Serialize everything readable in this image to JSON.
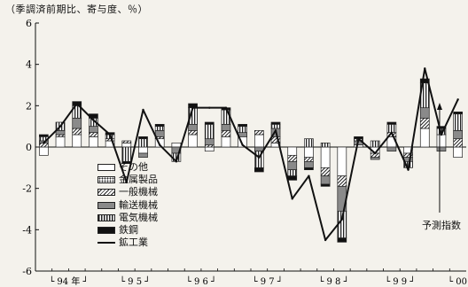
{
  "chart_data": {
    "type": "bar",
    "subtype": "stacked bar + line",
    "unit_label": "（季調済前期比、寄与度、％）",
    "annotation": "予測指数",
    "ylim": [
      -6,
      6
    ],
    "yticks": [
      -6,
      -4,
      -2,
      0,
      2,
      4,
      6
    ],
    "xtick_labels": [
      "└ 94 年 ┘",
      "└ 9 5 ┘",
      "└ 9 6 ┘",
      "└ 9 7 ┘",
      "└ 9 8 ┘",
      "└ 9 9 ┘",
      "└ 00"
    ],
    "categories": [
      "94Q1",
      "94Q2",
      "94Q3",
      "94Q4",
      "95Q1",
      "95Q2",
      "95Q3",
      "95Q4",
      "96Q1",
      "96Q2",
      "96Q3",
      "96Q4",
      "97Q1",
      "97Q2",
      "97Q3",
      "97Q4",
      "98Q1",
      "98Q2",
      "98Q3",
      "98Q4",
      "99Q1",
      "99Q2",
      "99Q3",
      "99Q4",
      "00Q1",
      "00Q2"
    ],
    "series": [
      {
        "name": "その他",
        "pattern": "white",
        "values": [
          -0.4,
          0.5,
          0.6,
          0.5,
          0.3,
          0.2,
          -0.3,
          0.4,
          0.2,
          0.6,
          -0.2,
          0.5,
          0.5,
          0.6,
          0.2,
          -0.4,
          -0.5,
          -1.0,
          -1.4,
          0.1,
          -0.3,
          0.5,
          -0.3,
          0.9,
          0.6,
          -0.5
        ]
      },
      {
        "name": "金属製品",
        "pattern": "dots",
        "values": [
          0.0,
          0.0,
          0.0,
          0.0,
          0.0,
          0.0,
          0.0,
          0.0,
          0.0,
          0.0,
          0.0,
          0.0,
          0.0,
          0.0,
          0.0,
          0.0,
          0.0,
          0.0,
          0.0,
          0.0,
          0.0,
          0.0,
          0.0,
          0.0,
          0.0,
          0.0
        ]
      },
      {
        "name": "一般機械",
        "pattern": "diag",
        "values": [
          0.2,
          0.1,
          0.3,
          0.2,
          0.1,
          0.1,
          0.0,
          0.1,
          0.0,
          0.2,
          0.1,
          0.3,
          0.0,
          0.2,
          0.3,
          -0.3,
          -0.2,
          -0.4,
          -0.5,
          0.0,
          -0.2,
          0.2,
          -0.2,
          0.5,
          0.0,
          0.4
        ]
      },
      {
        "name": "輸送機械",
        "pattern": "grey",
        "values": [
          0.1,
          0.2,
          0.5,
          0.3,
          0.0,
          0.0,
          -0.2,
          0.3,
          -0.3,
          0.3,
          0.3,
          0.3,
          0.2,
          -0.2,
          0.4,
          -0.4,
          -0.3,
          -0.4,
          -1.2,
          0.2,
          -0.1,
          -0.2,
          -0.2,
          0.5,
          -0.2,
          0.4
        ]
      },
      {
        "name": "電気機械",
        "pattern": "vlines",
        "values": [
          0.2,
          0.4,
          0.6,
          0.4,
          0.2,
          -0.7,
          0.4,
          0.2,
          -0.4,
          0.8,
          0.7,
          0.7,
          0.3,
          -0.8,
          0.2,
          -0.3,
          0.4,
          0.2,
          -1.3,
          0.1,
          0.3,
          0.4,
          -0.3,
          1.2,
          0.3,
          0.8
        ]
      },
      {
        "name": "鉄鋼",
        "pattern": "black",
        "values": [
          0.1,
          0.0,
          0.2,
          0.2,
          0.1,
          -0.1,
          0.1,
          0.1,
          0.0,
          0.2,
          0.1,
          0.1,
          0.1,
          -0.2,
          0.1,
          -0.2,
          -0.1,
          -0.1,
          -0.2,
          0.1,
          0.0,
          0.1,
          0.0,
          0.2,
          0.1,
          0.1
        ]
      },
      {
        "name": "鉱工業",
        "pattern": "line",
        "values": [
          0.2,
          1.0,
          2.1,
          1.3,
          0.6,
          -1.7,
          1.8,
          0.1,
          -0.7,
          1.9,
          1.9,
          1.9,
          0.1,
          -0.5,
          0.8,
          -2.5,
          -1.4,
          -4.5,
          -3.5,
          0.4,
          -0.3,
          0.7,
          -1.1,
          3.8,
          0.6,
          2.3
        ]
      }
    ]
  }
}
